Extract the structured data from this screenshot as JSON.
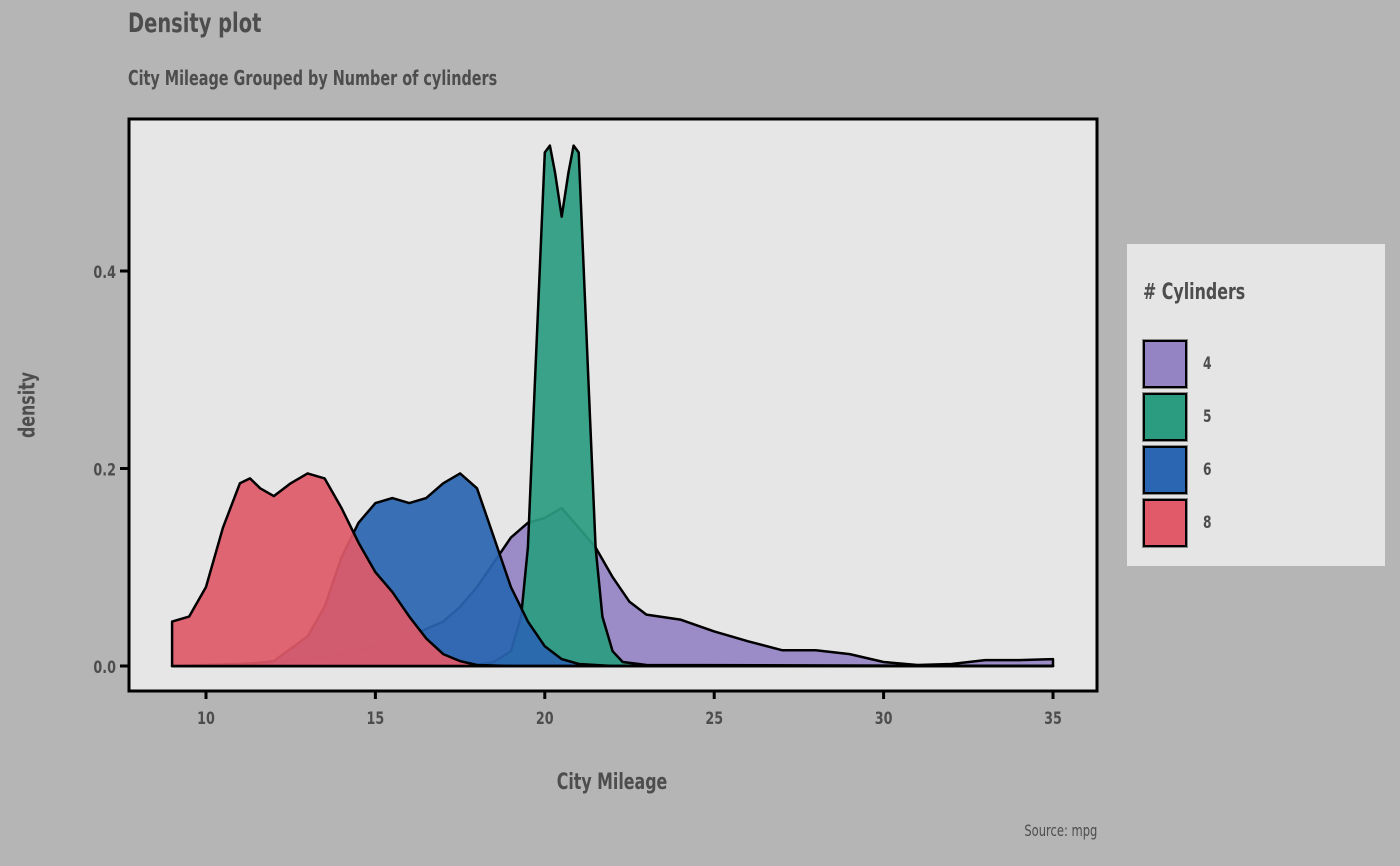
{
  "chart_data": {
    "type": "area",
    "title": "Density plot",
    "subtitle": "City Mileage Grouped by Number of cylinders",
    "xlabel": "City Mileage",
    "ylabel": "density",
    "caption": "Source: mpg",
    "xlim": [
      9,
      35
    ],
    "ylim": [
      0,
      0.53
    ],
    "x_ticks": [
      10,
      15,
      20,
      25,
      30,
      35
    ],
    "x_tick_labels": [
      "10",
      "15",
      "20",
      "25",
      "30",
      "35"
    ],
    "y_ticks": [
      0.0,
      0.2,
      0.4
    ],
    "y_tick_labels": [
      "0.0",
      "0.2",
      "0.4"
    ],
    "legend": {
      "title": "# Cylinders",
      "placement": "right"
    },
    "grid": false,
    "background": "#e6e6e6",
    "series": [
      {
        "name": "4",
        "color": "#9584c4",
        "points": [
          [
            9,
            0
          ],
          [
            10,
            0.001
          ],
          [
            11,
            0.002
          ],
          [
            12,
            0.004
          ],
          [
            13,
            0.007
          ],
          [
            14,
            0.012
          ],
          [
            15,
            0.02
          ],
          [
            16,
            0.03
          ],
          [
            17,
            0.045
          ],
          [
            17.5,
            0.06
          ],
          [
            18,
            0.08
          ],
          [
            18.5,
            0.105
          ],
          [
            19,
            0.13
          ],
          [
            19.5,
            0.145
          ],
          [
            20,
            0.15
          ],
          [
            20.5,
            0.16
          ],
          [
            21,
            0.14
          ],
          [
            21.5,
            0.12
          ],
          [
            22,
            0.09
          ],
          [
            22.5,
            0.065
          ],
          [
            23,
            0.052
          ],
          [
            24,
            0.047
          ],
          [
            25,
            0.035
          ],
          [
            26,
            0.025
          ],
          [
            27,
            0.016
          ],
          [
            28,
            0.016
          ],
          [
            29,
            0.012
          ],
          [
            30,
            0.004
          ],
          [
            31,
            0.001
          ],
          [
            32,
            0.002
          ],
          [
            33,
            0.006
          ],
          [
            34,
            0.006
          ],
          [
            35,
            0.007
          ]
        ]
      },
      {
        "name": "5",
        "color": "#2b9c80",
        "points": [
          [
            9,
            0
          ],
          [
            17,
            0
          ],
          [
            18,
            0.001
          ],
          [
            18.5,
            0.004
          ],
          [
            19,
            0.015
          ],
          [
            19.3,
            0.05
          ],
          [
            19.5,
            0.12
          ],
          [
            19.7,
            0.28
          ],
          [
            19.9,
            0.44
          ],
          [
            20,
            0.52
          ],
          [
            20.15,
            0.527
          ],
          [
            20.3,
            0.5
          ],
          [
            20.5,
            0.455
          ],
          [
            20.7,
            0.5
          ],
          [
            20.85,
            0.527
          ],
          [
            21,
            0.52
          ],
          [
            21.1,
            0.44
          ],
          [
            21.3,
            0.28
          ],
          [
            21.5,
            0.12
          ],
          [
            21.7,
            0.05
          ],
          [
            22,
            0.015
          ],
          [
            22.3,
            0.004
          ],
          [
            23,
            0.001
          ],
          [
            35,
            0
          ]
        ]
      },
      {
        "name": "6",
        "color": "#2a66b1",
        "points": [
          [
            9,
            0
          ],
          [
            11,
            0.001
          ],
          [
            12,
            0.005
          ],
          [
            13,
            0.03
          ],
          [
            13.5,
            0.06
          ],
          [
            14,
            0.11
          ],
          [
            14.5,
            0.145
          ],
          [
            15,
            0.165
          ],
          [
            15.5,
            0.17
          ],
          [
            16,
            0.165
          ],
          [
            16.5,
            0.17
          ],
          [
            17,
            0.185
          ],
          [
            17.5,
            0.195
          ],
          [
            18,
            0.18
          ],
          [
            18.5,
            0.13
          ],
          [
            19,
            0.08
          ],
          [
            19.5,
            0.045
          ],
          [
            20,
            0.02
          ],
          [
            20.5,
            0.007
          ],
          [
            21,
            0.002
          ],
          [
            22,
            0
          ],
          [
            35,
            0
          ]
        ]
      },
      {
        "name": "8",
        "color": "#e05a69",
        "points": [
          [
            9,
            0.045
          ],
          [
            9.5,
            0.05
          ],
          [
            10,
            0.08
          ],
          [
            10.5,
            0.14
          ],
          [
            11,
            0.185
          ],
          [
            11.3,
            0.19
          ],
          [
            11.6,
            0.18
          ],
          [
            12,
            0.172
          ],
          [
            12.5,
            0.185
          ],
          [
            13,
            0.195
          ],
          [
            13.5,
            0.19
          ],
          [
            14,
            0.16
          ],
          [
            14.5,
            0.125
          ],
          [
            15,
            0.095
          ],
          [
            15.5,
            0.075
          ],
          [
            16,
            0.05
          ],
          [
            16.5,
            0.028
          ],
          [
            17,
            0.012
          ],
          [
            17.5,
            0.005
          ],
          [
            18,
            0.001
          ],
          [
            19,
            0
          ],
          [
            35,
            0
          ]
        ]
      }
    ]
  }
}
